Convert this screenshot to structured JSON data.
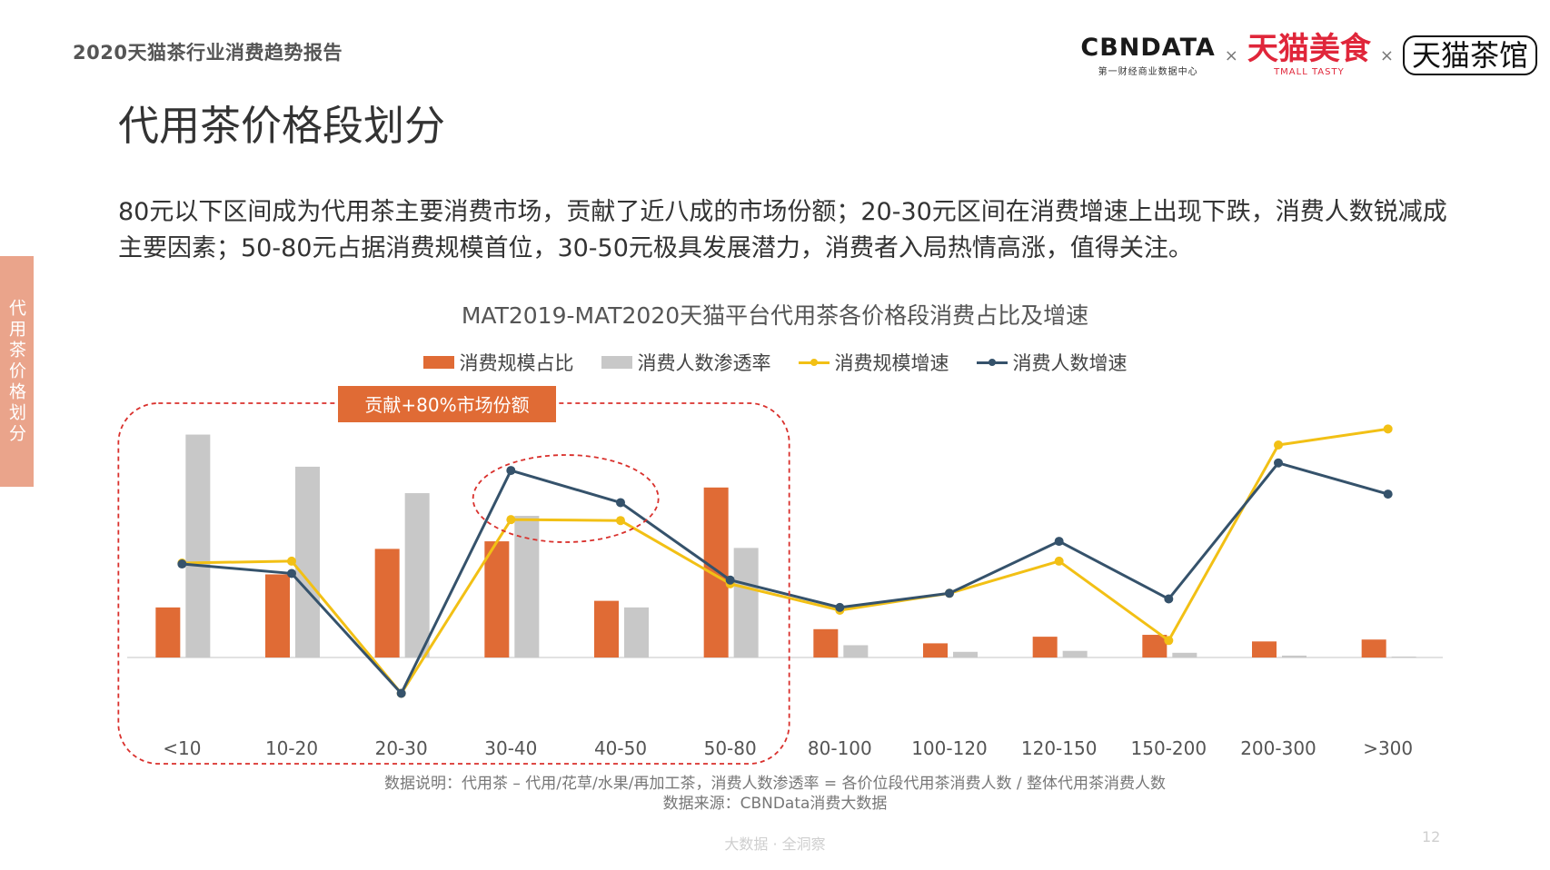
{
  "header": {
    "report_title": "2020天猫茶行业消费趋势报告",
    "logos": {
      "cbndata_main": "CBNDATA",
      "cbndata_sub": "第一财经商业数据中心",
      "separator": "×",
      "tmall_main": "天猫美食",
      "tmall_sub": "TMALL TASTY",
      "teahouse": "天猫茶馆"
    }
  },
  "page_title": "代用茶价格段划分",
  "side_tab": "代用茶价格划分",
  "summary": "80元以下区间成为代用茶主要消费市场，贡献了近八成的市场份额；20-30元区间在消费增速上出现下跌，消费人数锐减成主要因素；50-80元占据消费规模首位，30-50元极具发展潜力，消费者入局热情高涨，值得关注。",
  "chart_data": {
    "type": "bar",
    "title": "MAT2019-MAT2020天猫平台代用茶各价格段消费占比及增速",
    "categories": [
      "<10",
      "10-20",
      "20-30",
      "30-40",
      "40-50",
      "50-80",
      "80-100",
      "100-120",
      "120-150",
      "150-200",
      "200-300",
      ">300"
    ],
    "ylim": [
      -40,
      245
    ],
    "series": [
      {
        "name": "消费规模占比",
        "kind": "bar",
        "color": "#e06b35",
        "values": [
          53,
          88,
          115,
          123,
          60,
          180,
          30,
          15,
          22,
          24,
          17,
          19
        ]
      },
      {
        "name": "消费人数渗透率",
        "kind": "bar",
        "color": "#c8c8c8",
        "values": [
          236,
          202,
          174,
          150,
          53,
          116,
          13,
          6,
          7,
          5,
          2,
          1
        ]
      },
      {
        "name": "消费规模增速",
        "kind": "line",
        "color": "#f2c015",
        "values": [
          100,
          102,
          -38,
          146,
          145,
          78,
          50,
          68,
          102,
          18,
          225,
          242
        ]
      },
      {
        "name": "消费人数增速",
        "kind": "line",
        "color": "#35526b",
        "values": [
          99,
          89,
          -38,
          198,
          164,
          82,
          53,
          68,
          123,
          62,
          206,
          173
        ]
      }
    ],
    "annotations": [
      {
        "text": "贡献+80%市场份额",
        "color": "#e06b35",
        "covers": [
          "<10",
          "50-80"
        ]
      },
      {
        "text": "",
        "covers": [
          "30-40",
          "40-50"
        ]
      }
    ],
    "legend_position": "top",
    "grid": false
  },
  "notes": {
    "line1": "数据说明：代用茶 – 代用/花草/水果/再加工茶，消费人数渗透率 = 各价位段代用茶消费人数 / 整体代用茶消费人数",
    "line2": "数据来源：CBNData消费大数据"
  },
  "footer": {
    "center": "大数据 · 全洞察",
    "page_number": "12"
  }
}
